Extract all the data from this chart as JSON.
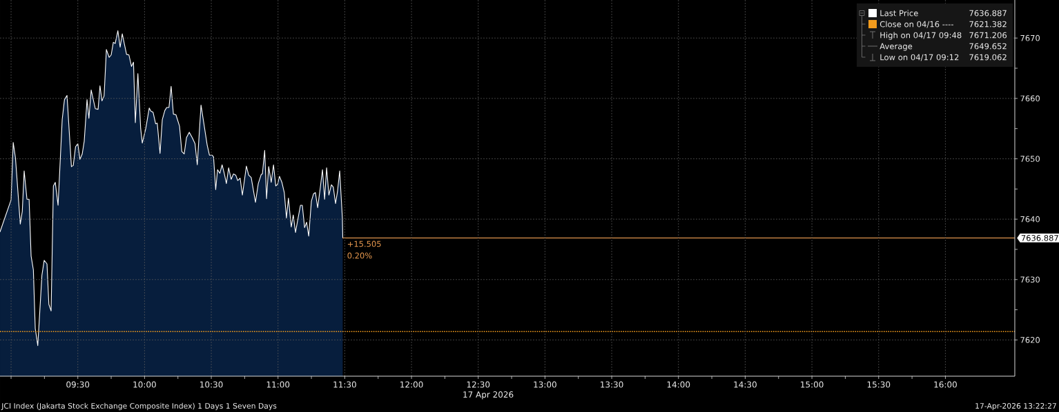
{
  "chart_data": {
    "type": "area",
    "title": "JCI Index (Jakarta Stock Exchange Composite Index) 1 Days 1 Seven Days",
    "xlabel": "17 Apr 2026",
    "x": [
      8.917,
      9.0,
      9.016,
      9.033,
      9.069,
      9.084,
      9.098,
      9.119,
      9.135,
      9.15,
      9.167,
      9.181,
      9.2,
      9.231,
      9.248,
      9.269,
      9.283,
      9.3,
      9.317,
      9.331,
      9.352,
      9.383,
      9.4,
      9.419,
      9.452,
      9.466,
      9.483,
      9.5,
      9.516,
      9.533,
      9.548,
      9.569,
      9.583,
      9.6,
      9.631,
      9.652,
      9.666,
      9.681,
      9.697,
      9.714,
      9.735,
      9.75,
      9.766,
      9.78,
      9.8,
      9.817,
      9.833,
      9.865,
      9.883,
      9.902,
      9.917,
      9.931,
      9.95,
      9.971,
      9.983,
      10.009,
      10.035,
      10.047,
      10.064,
      10.083,
      10.095,
      10.116,
      10.133,
      10.152,
      10.166,
      10.183,
      10.199,
      10.216,
      10.235,
      10.262,
      10.279,
      10.297,
      10.314,
      10.335,
      10.357,
      10.378,
      10.395,
      10.423,
      10.469,
      10.486,
      10.507,
      10.517,
      10.533,
      10.547,
      10.564,
      10.581,
      10.597,
      10.613,
      10.63,
      10.649,
      10.666,
      10.683,
      10.698,
      10.716,
      10.733,
      10.763,
      10.78,
      10.799,
      10.831,
      10.852,
      10.874,
      10.883,
      10.9,
      10.914,
      10.93,
      10.949,
      10.966,
      10.983,
      10.997,
      11.011,
      11.029,
      11.047,
      11.063,
      11.078,
      11.099,
      11.114,
      11.131,
      11.147,
      11.168,
      11.182,
      11.199,
      11.214,
      11.23,
      11.25,
      11.266,
      11.28,
      11.297,
      11.316,
      11.333,
      11.349,
      11.364,
      11.381,
      11.4,
      11.414,
      11.431,
      11.445,
      11.462,
      11.482,
      11.485
    ],
    "series": [
      {
        "name": "Last Price",
        "color": "#ffffff",
        "values": [
          7637.9,
          7643.2,
          7652.7,
          7650.1,
          7639.2,
          7641.3,
          7648.0,
          7643.3,
          7643.3,
          7633.9,
          7631.6,
          7621.9,
          7619.062,
          7630.7,
          7633.2,
          7632.6,
          7625.9,
          7624.8,
          7645.5,
          7646.1,
          7642.3,
          7656.5,
          7659.8,
          7660.5,
          7648.7,
          7648.9,
          7652.0,
          7652.5,
          7649.9,
          7650.8,
          7652.9,
          7659.8,
          7656.7,
          7661.4,
          7658.3,
          7658.2,
          7662.1,
          7659.6,
          7660.4,
          7668.1,
          7666.8,
          7667.2,
          7669.3,
          7669.1,
          7671.206,
          7668.5,
          7670.7,
          7667.3,
          7667.2,
          7665.3,
          7666.0,
          7656.0,
          7664.1,
          7655.0,
          7652.6,
          7655.0,
          7658.4,
          7657.9,
          7657.7,
          7655.8,
          7655.9,
          7650.9,
          7656.5,
          7658.0,
          7658.5,
          7658.5,
          7662.0,
          7657.4,
          7657.3,
          7655.4,
          7651.2,
          7650.8,
          7653.5,
          7654.4,
          7653.5,
          7652.5,
          7649.0,
          7658.9,
          7652.3,
          7650.6,
          7650.6,
          7650.3,
          7644.9,
          7648.2,
          7647.6,
          7649.0,
          7647.6,
          7645.9,
          7648.5,
          7646.6,
          7647.5,
          7647.3,
          7646.4,
          7646.8,
          7644.0,
          7648.8,
          7647.3,
          7646.9,
          7642.8,
          7645.9,
          7647.4,
          7647.5,
          7651.4,
          7643.4,
          7648.7,
          7646.1,
          7649.0,
          7645.5,
          7645.8,
          7647.1,
          7646.1,
          7644.4,
          7640.2,
          7643.5,
          7638.7,
          7640.7,
          7637.8,
          7639.8,
          7642.3,
          7642.3,
          7638.6,
          7639.5,
          7637.2,
          7643.0,
          7644.2,
          7644.4,
          7641.9,
          7645.1,
          7648.2,
          7643.3,
          7648.5,
          7644.0,
          7645.7,
          7645.3,
          7642.6,
          7644.5,
          7648.0,
          7640.2,
          7636.887
        ]
      },
      {
        "type": "line",
        "color": "#e8994f",
        "x": [
          11.485,
          16.52
        ],
        "values": [
          7636.887,
          7636.887
        ],
        "value_labels": [
          null,
          "7636.887"
        ]
      }
    ],
    "xlim": [
      8.917,
      16.52
    ],
    "ylim": [
      7614,
      7676.3
    ],
    "xticks": [
      {
        "value": 9,
        "label": null
      },
      {
        "value": 9.5,
        "label": "09:30"
      },
      {
        "value": 10,
        "label": "10:00"
      },
      {
        "value": 10.5,
        "label": "10:30"
      },
      {
        "value": 11,
        "label": "11:00"
      },
      {
        "value": 11.5,
        "label": "11:30"
      },
      {
        "value": 12,
        "label": "12:00"
      },
      {
        "value": 12.5,
        "label": "12:30"
      },
      {
        "value": 13,
        "label": "13:00"
      },
      {
        "value": 13.5,
        "label": "13:30"
      },
      {
        "value": 14,
        "label": "14:00"
      },
      {
        "value": 14.5,
        "label": "14:30"
      },
      {
        "value": 15,
        "label": "15:00"
      },
      {
        "value": 15.5,
        "label": "15:30"
      },
      {
        "value": 16,
        "label": "16:00"
      }
    ],
    "yticks": [
      7620,
      7630,
      7640,
      7650,
      7660,
      7670
    ],
    "grid": true,
    "legend": "top right",
    "ref_lines": [
      {
        "axis": "y",
        "value": 7621.382,
        "label": "Close on 04/16 ----",
        "color": "#f29b1d",
        "line_style": "dotted"
      }
    ],
    "annotations": [
      "17-Apr-2026 13:22:27",
      {
        "text": "+15.505",
        "x": 11.485,
        "y": 7636.887
      },
      {
        "text": "0.20%",
        "x": 11.485,
        "y": 7636.887
      },
      "7636.887",
      "7621.382",
      "High on 04/17 09:48",
      "7671.206",
      "Average",
      "7649.652",
      "Low on 04/17 09:12",
      "7619.062"
    ]
  }
}
